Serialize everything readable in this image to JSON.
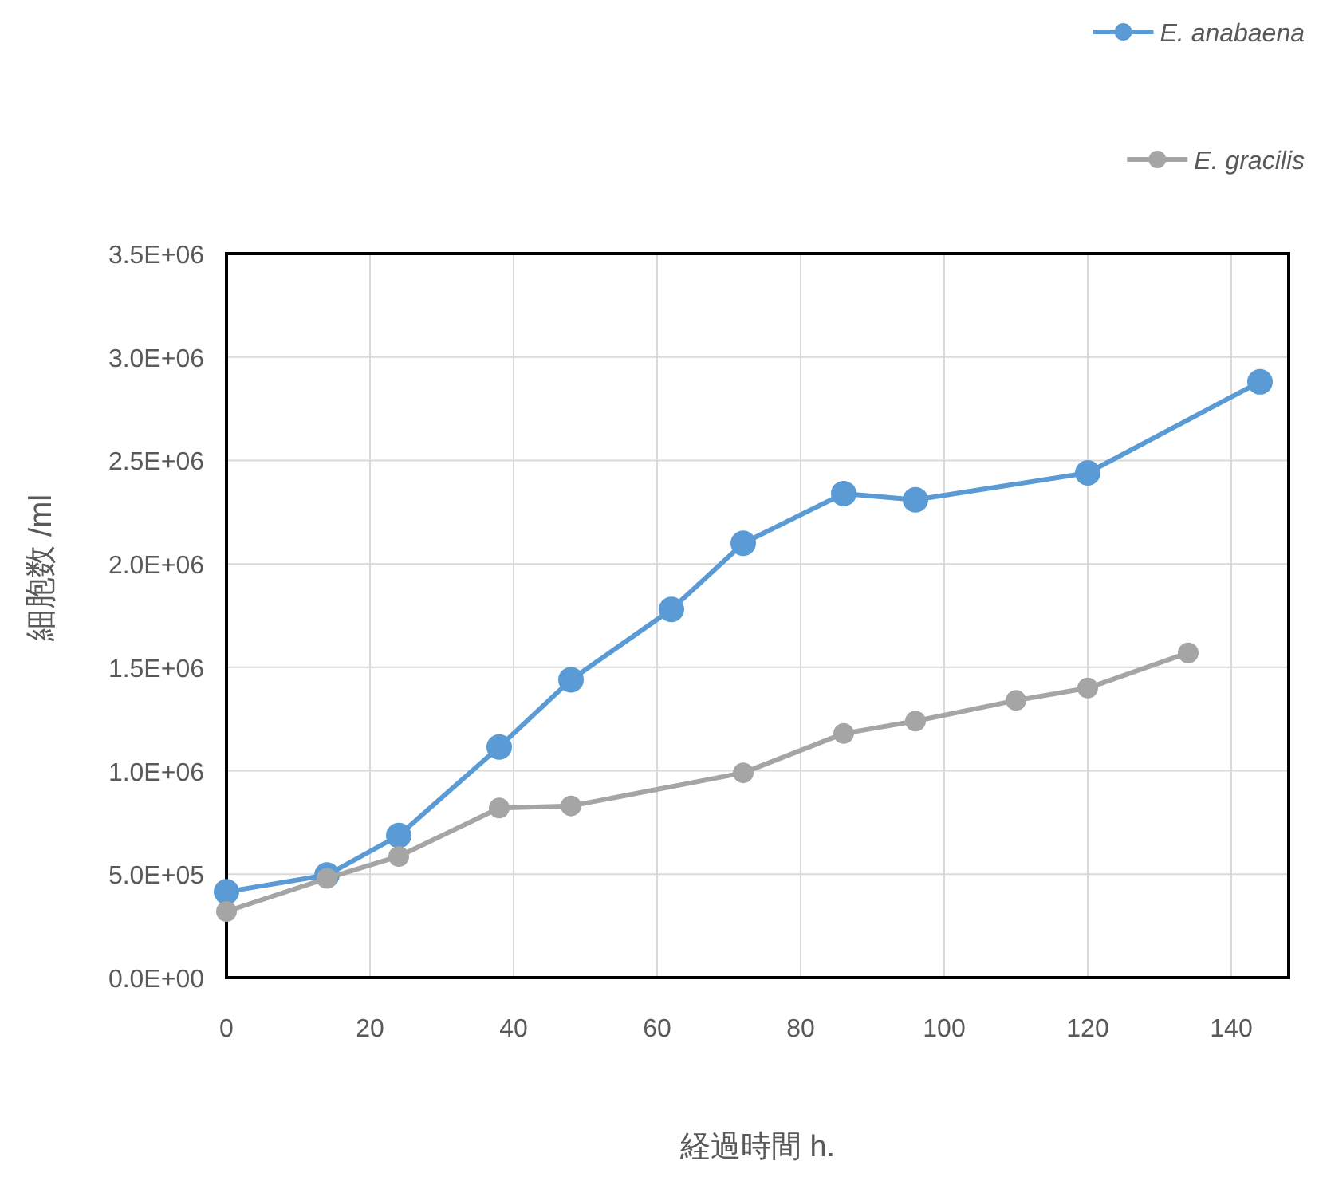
{
  "chart_data": {
    "type": "line",
    "xlabel": "経過時間 h.",
    "ylabel": "細胞数 /ml",
    "series": [
      {
        "name": "E. anabaena",
        "color": "#5b9bd5",
        "x": [
          0,
          14,
          24,
          38,
          48,
          62,
          72,
          86,
          96,
          120,
          144
        ],
        "values": [
          415000,
          496000,
          687000,
          1115000,
          1440000,
          1780000,
          2100000,
          2340000,
          2310000,
          2440000,
          2880000
        ]
      },
      {
        "name": "E. gracilis",
        "color": "#a5a5a5",
        "x": [
          0,
          14,
          24,
          38,
          48,
          72,
          86,
          96,
          110,
          120,
          134
        ],
        "values": [
          320000,
          480000,
          586000,
          820000,
          830000,
          990000,
          1180000,
          1240000,
          1340000,
          1400000,
          1570000
        ]
      }
    ],
    "xlim": [
      0,
      148
    ],
    "xticks": [
      0,
      20,
      40,
      60,
      80,
      100,
      120,
      140
    ],
    "ylim": [
      0,
      3500000
    ],
    "yticks": [
      {
        "value": 0,
        "label": "0.0E+00"
      },
      {
        "value": 500000,
        "label": "5.0E+05"
      },
      {
        "value": 1000000,
        "label": "1.0E+06"
      },
      {
        "value": 1500000,
        "label": "1.5E+06"
      },
      {
        "value": 2000000,
        "label": "2.0E+06"
      },
      {
        "value": 2500000,
        "label": "2.5E+06"
      },
      {
        "value": 3000000,
        "label": "3.0E+06"
      },
      {
        "value": 3500000,
        "label": "3.5E+06"
      }
    ],
    "grid": true,
    "legend": "top right",
    "marker": "circle",
    "line_style": "solid"
  }
}
